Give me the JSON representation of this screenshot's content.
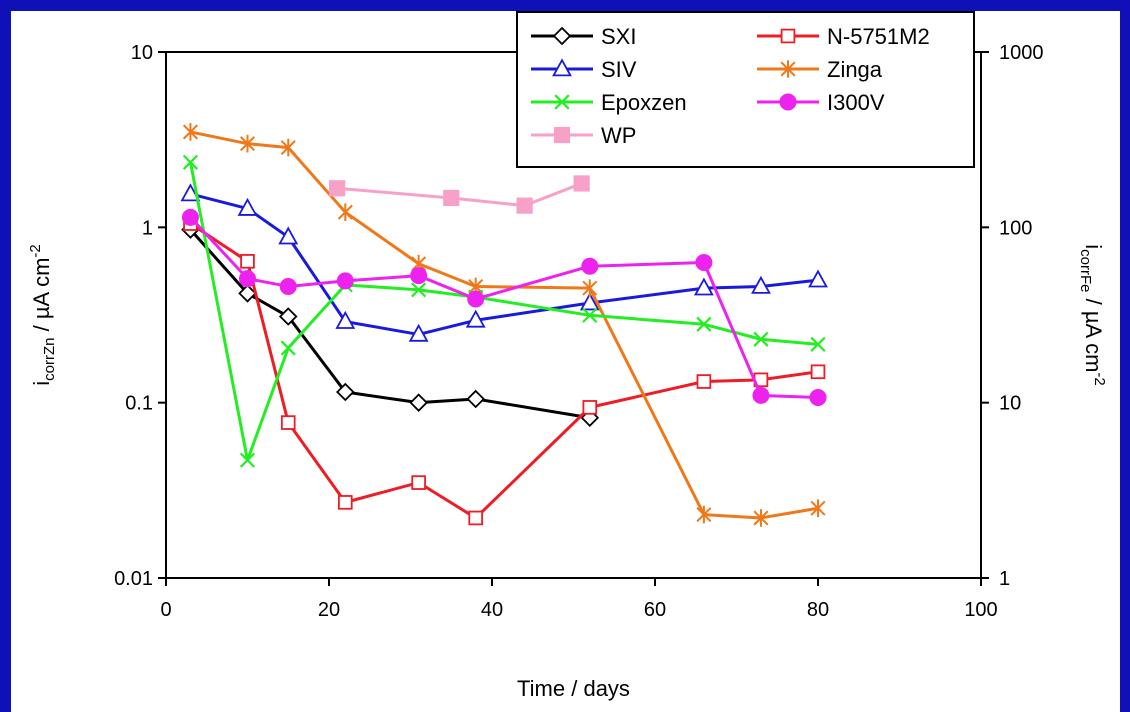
{
  "chart_data": {
    "type": "line",
    "title": "",
    "xlabel": "Time / days",
    "ylabel_left": {
      "base": "i",
      "sub": "corrZn",
      "unit": " / µA cm",
      "sup": "-2"
    },
    "ylabel_right": {
      "base": "i",
      "sub": "corrFe",
      "unit": " / µA cm",
      "sup": "-2"
    },
    "xlim": [
      0,
      100
    ],
    "ylim_left": [
      0.01,
      10
    ],
    "ylim_right": [
      1,
      1000
    ],
    "y_scale": "log",
    "x_ticks": [
      "0",
      "20",
      "40",
      "60",
      "80",
      "100"
    ],
    "y_ticks_left": [
      "0.01",
      "0.1",
      "1",
      "10"
    ],
    "y_ticks_right": [
      "1",
      "10",
      "100",
      "1000"
    ],
    "grid": false,
    "legend_position": "top-right",
    "series": [
      {
        "name": "SXI",
        "color": "#000000",
        "marker": "diamond",
        "axis": "left",
        "x": [
          3,
          10,
          15,
          22,
          31,
          38,
          52
        ],
        "y": [
          0.97,
          0.42,
          0.31,
          0.115,
          0.1,
          0.105,
          0.082
        ]
      },
      {
        "name": "N-5751M2",
        "color": "#ee1c24",
        "marker": "square-open",
        "axis": "left",
        "x": [
          3,
          10,
          15,
          22,
          31,
          38,
          52,
          66,
          73,
          80
        ],
        "y": [
          1.05,
          0.64,
          0.077,
          0.027,
          0.035,
          0.022,
          0.094,
          0.132,
          0.135,
          0.15
        ]
      },
      {
        "name": "SIV",
        "color": "#1a1adf",
        "marker": "triangle",
        "axis": "left",
        "x": [
          3,
          10,
          15,
          22,
          31,
          38,
          52,
          66,
          73,
          80
        ],
        "y": [
          1.55,
          1.28,
          0.88,
          0.29,
          0.245,
          0.295,
          0.37,
          0.45,
          0.46,
          0.5
        ]
      },
      {
        "name": "Zinga",
        "color": "#f07818",
        "marker": "star",
        "axis": "left",
        "x": [
          3,
          10,
          15,
          22,
          31,
          38,
          52,
          66,
          73,
          80
        ],
        "y": [
          3.5,
          3.0,
          2.85,
          1.22,
          0.62,
          0.46,
          0.45,
          0.023,
          0.022,
          0.025
        ]
      },
      {
        "name": "Epoxzen",
        "color": "#22ee22",
        "marker": "x",
        "axis": "left",
        "x": [
          3,
          10,
          15,
          22,
          31,
          38,
          52,
          66,
          73,
          80
        ],
        "y": [
          2.35,
          0.047,
          0.205,
          0.47,
          0.44,
          0.4,
          0.315,
          0.28,
          0.23,
          0.215
        ]
      },
      {
        "name": "I300V",
        "color": "#ee22ee",
        "marker": "circle",
        "axis": "left",
        "x": [
          3,
          10,
          15,
          22,
          31,
          38,
          52,
          66,
          73,
          80
        ],
        "y": [
          1.14,
          0.51,
          0.46,
          0.495,
          0.53,
          0.39,
          0.6,
          0.63,
          0.11,
          0.107
        ]
      },
      {
        "name": "WP",
        "color": "#f7a0c8",
        "marker": "square-filled",
        "axis": "right",
        "x": [
          21,
          35,
          44,
          51
        ],
        "y": [
          167,
          147,
          133,
          178
        ]
      }
    ]
  }
}
